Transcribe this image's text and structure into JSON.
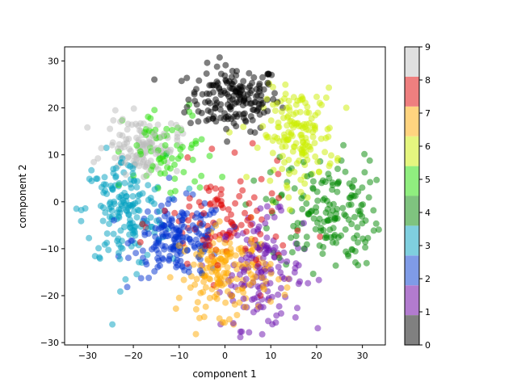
{
  "chart_data": {
    "type": "scatter",
    "xlabel": "component 1",
    "ylabel": "component 2",
    "xlim": [
      -35,
      35
    ],
    "ylim": [
      -30.5,
      33
    ],
    "xticks": [
      -30,
      -20,
      -10,
      0,
      10,
      20,
      30
    ],
    "yticks": [
      -30,
      -20,
      -10,
      0,
      10,
      20,
      30
    ],
    "grid": false,
    "point_alpha": 0.5,
    "colorbar": {
      "ticks": [
        0,
        1,
        2,
        3,
        4,
        5,
        6,
        7,
        8,
        9
      ],
      "range": [
        0,
        9
      ]
    },
    "classes": [
      {
        "label": "0",
        "color": "#000000",
        "center": [
          2,
          22
        ],
        "spread": [
          5,
          3.5
        ],
        "count": 180
      },
      {
        "label": "1",
        "color": "#6a0dad",
        "center": [
          8,
          -15
        ],
        "spread": [
          4.5,
          6
        ],
        "count": 150
      },
      {
        "label": "2",
        "color": "#0030d0",
        "center": [
          -10,
          -8
        ],
        "spread": [
          5,
          4
        ],
        "count": 180
      },
      {
        "label": "3",
        "color": "#00a0c0",
        "center": [
          -22,
          -2
        ],
        "spread": [
          4.5,
          6
        ],
        "count": 170
      },
      {
        "label": "4",
        "color": "#008800",
        "center": [
          22,
          -2
        ],
        "spread": [
          6,
          6
        ],
        "count": 170
      },
      {
        "label": "5",
        "color": "#22dd00",
        "center": [
          -12,
          10
        ],
        "spread": [
          5,
          5
        ],
        "count": 70
      },
      {
        "label": "6",
        "color": "#ccee00",
        "center": [
          16,
          14
        ],
        "spread": [
          4,
          5
        ],
        "count": 160
      },
      {
        "label": "7",
        "color": "#ffaa00",
        "center": [
          0,
          -15
        ],
        "spread": [
          5,
          4.5
        ],
        "count": 170
      },
      {
        "label": "8",
        "color": "#dd0000",
        "center": [
          0,
          -5
        ],
        "spread": [
          7,
          6
        ],
        "count": 100
      },
      {
        "label": "9",
        "color": "#bbbbbb",
        "center": [
          -18,
          12
        ],
        "spread": [
          4,
          3
        ],
        "count": 120
      }
    ],
    "colorbar_colors": [
      "#808080",
      "#b27bcf",
      "#7f9be7",
      "#7fcfdf",
      "#7fc37f",
      "#90ee7f",
      "#e5f67f",
      "#ffd47f",
      "#ef7f7f",
      "#e0e0e0"
    ]
  }
}
